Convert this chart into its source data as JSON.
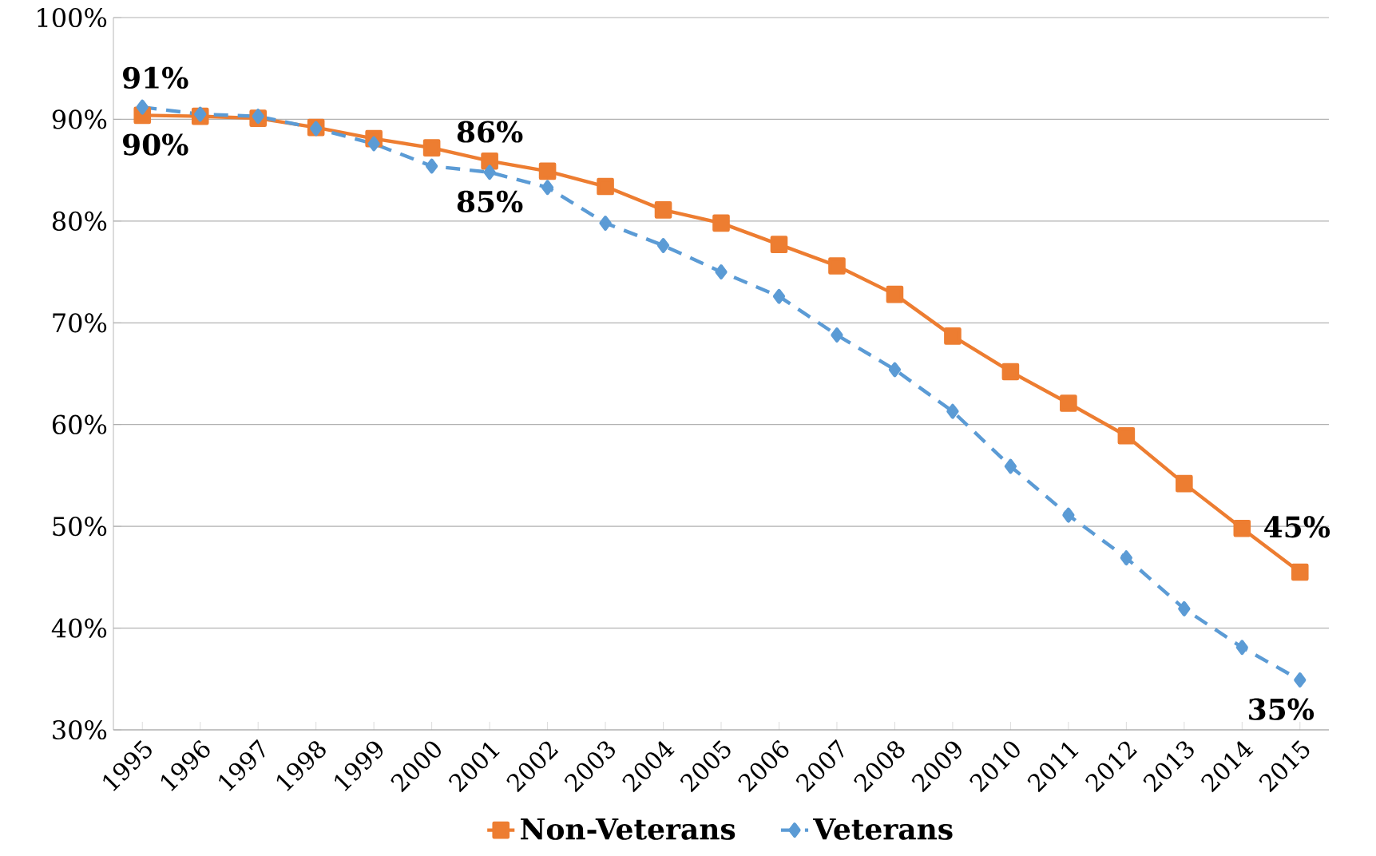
{
  "chart_data": {
    "type": "line",
    "categories": [
      "1995",
      "1996",
      "1997",
      "1998",
      "1999",
      "2000",
      "2001",
      "2002",
      "2003",
      "2004",
      "2005",
      "2006",
      "2007",
      "2008",
      "2009",
      "2010",
      "2011",
      "2012",
      "2013",
      "2014",
      "2015"
    ],
    "series": [
      {
        "name": "Non-Veterans",
        "color": "#ed7d31",
        "marker": "square",
        "line_style": "solid",
        "values": [
          90.4,
          90.3,
          90.1,
          89.2,
          88.1,
          87.2,
          85.9,
          84.9,
          83.4,
          81.1,
          79.8,
          77.7,
          75.6,
          72.8,
          68.7,
          65.2,
          62.1,
          58.9,
          54.2,
          49.8,
          45.5
        ]
      },
      {
        "name": "Veterans",
        "color": "#5b9bd5",
        "marker": "diamond",
        "line_style": "dashed",
        "values": [
          91.2,
          90.5,
          90.3,
          89.1,
          87.6,
          85.4,
          84.8,
          83.3,
          79.8,
          77.6,
          75.0,
          72.6,
          68.8,
          65.4,
          61.3,
          55.9,
          51.1,
          46.9,
          41.9,
          38.1,
          34.9
        ]
      }
    ],
    "ylim": [
      30,
      100
    ],
    "yticks": [
      {
        "value": 30,
        "label": "30%"
      },
      {
        "value": 40,
        "label": "40%"
      },
      {
        "value": 50,
        "label": "50%"
      },
      {
        "value": 60,
        "label": "60%"
      },
      {
        "value": 70,
        "label": "70%"
      },
      {
        "value": 80,
        "label": "80%"
      },
      {
        "value": 90,
        "label": "90%"
      },
      {
        "value": 100,
        "label": "100%"
      }
    ],
    "grid": "y",
    "legend": "bottom",
    "annotations": [
      {
        "text": "91%",
        "x": "1995",
        "y": 91.2
      },
      {
        "text": "90%",
        "x": "1995",
        "y": 90.4
      },
      {
        "text": "86%",
        "x": "2001",
        "y": 85.9
      },
      {
        "text": "85%",
        "x": "2001",
        "y": 84.8
      },
      {
        "text": "45%",
        "x": "2015",
        "y": 45.5
      },
      {
        "text": "35%",
        "x": "2015",
        "y": 34.9
      }
    ]
  }
}
